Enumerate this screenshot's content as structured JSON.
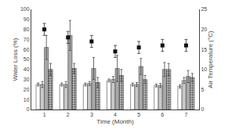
{
  "chart_data": {
    "type": "bar",
    "x": [
      1,
      2,
      3,
      4,
      5,
      6,
      7
    ],
    "xlim": [
      0.45,
      7.55
    ],
    "xticks": [
      1,
      2,
      3,
      4,
      5,
      6,
      7
    ],
    "x_label": "Time (Month)",
    "y_label": "Water Loss (%)",
    "y2_label": "Air Temperature (°C)",
    "ylim": [
      0,
      100
    ],
    "yticks": [
      0,
      10,
      20,
      30,
      40,
      50,
      60,
      70,
      80,
      90,
      100
    ],
    "y2lim": [
      0,
      25
    ],
    "y2ticks": [
      0,
      5,
      10,
      15,
      20,
      25
    ],
    "grid": false,
    "series": [
      {
        "type": "bar",
        "color": "#ffffff",
        "values": [
          25,
          25,
          25,
          29,
          25,
          24,
          23
        ],
        "errors": [
          1.5,
          1.5,
          1.5,
          1.5,
          1.5,
          1.5,
          1.5
        ]
      },
      {
        "type": "bar",
        "color": "#c8c8c8",
        "values": [
          25,
          25,
          26,
          30,
          25,
          24,
          29
        ],
        "errors": [
          3,
          3,
          2,
          3,
          2,
          2,
          3
        ]
      },
      {
        "type": "bar",
        "color": "#a8a8a8",
        "values": [
          62,
          74,
          41,
          41,
          43,
          40,
          33
        ],
        "errors": [
          12,
          15,
          11,
          13,
          8,
          7,
          6
        ]
      },
      {
        "type": "bar",
        "color": "#b8b8b8",
        "marker": "dots",
        "values": [
          40,
          41,
          27,
          34,
          30,
          40,
          32
        ],
        "errors": [
          6,
          5,
          5,
          6,
          4,
          6,
          4
        ]
      },
      {
        "type": "scatter",
        "axis": "y2",
        "color": "#111111",
        "marker": "square",
        "values": [
          20,
          18,
          17,
          14.5,
          15.5,
          16,
          16
        ],
        "errors": [
          1.5,
          1.5,
          1.5,
          1.5,
          1.5,
          1.5,
          1.5
        ]
      }
    ]
  }
}
